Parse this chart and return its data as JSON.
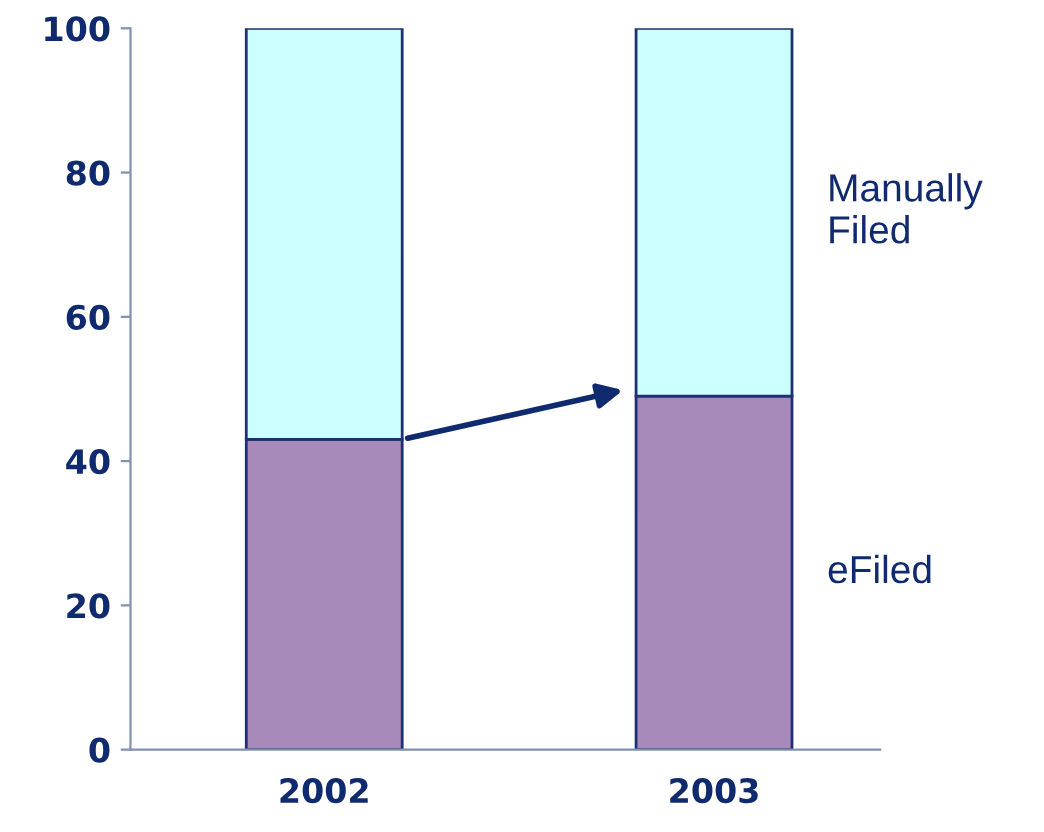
{
  "chart_data": {
    "type": "bar",
    "stacked": true,
    "categories": [
      "2002",
      "2003"
    ],
    "series": [
      {
        "name": "eFiled",
        "color": "#a789ba",
        "values": [
          43,
          49
        ]
      },
      {
        "name": "Manually Filed",
        "color": "#ccffff",
        "values": [
          57,
          51
        ]
      }
    ],
    "ylim": [
      0,
      100
    ],
    "yticks": [
      0,
      20,
      40,
      60,
      80,
      100
    ],
    "grid": false
  }
}
